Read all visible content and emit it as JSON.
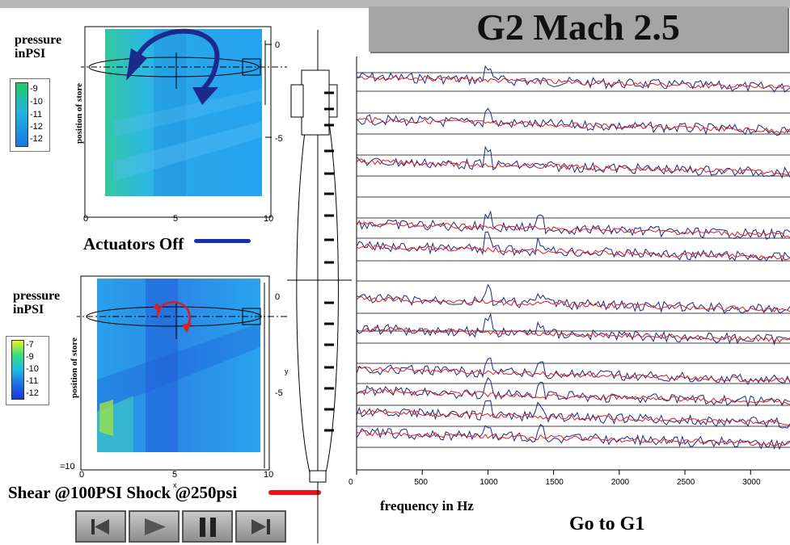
{
  "title": "G2 Mach 2.5",
  "top_panel": {
    "pressure_label_1": "pressure",
    "pressure_label_2": "inPSI",
    "legend_ticks": [
      "-9",
      "-10",
      "-11",
      "-12",
      "-12"
    ],
    "y_axis_label": "position of store",
    "x_ticks": [
      "0",
      "5",
      "10"
    ],
    "y_ticks": [
      "0",
      "-5"
    ],
    "caption": "Actuators Off",
    "line_color": "#1a2fb0"
  },
  "bottom_panel": {
    "pressure_label_1": "pressure",
    "pressure_label_2": "inPSI",
    "legend_ticks": [
      "-7",
      "-9",
      "-10",
      "-11",
      "-12"
    ],
    "y_axis_label": "position of store",
    "x_ticks": [
      "0",
      "5",
      "10"
    ],
    "y_ticks": [
      "0",
      "-5",
      "=10"
    ],
    "axis_letter": "x",
    "axis_letter_y": "y",
    "caption": "Shear @100PSI Shock @250psi",
    "line_color": "#e8141a"
  },
  "spectra": {
    "x_ticks": [
      "0",
      "500",
      "1000",
      "1500",
      "2000",
      "2500",
      "3000"
    ],
    "xlabel": "frequency in Hz",
    "xlim": [
      0,
      3300
    ],
    "blue_color": "#1c2a8c",
    "red_color": "#e11a1a"
  },
  "link": {
    "label": "Go to G1"
  },
  "controls": {
    "buttons": [
      "rewind-icon",
      "play-icon",
      "pause-icon",
      "skip-end-icon"
    ]
  }
}
